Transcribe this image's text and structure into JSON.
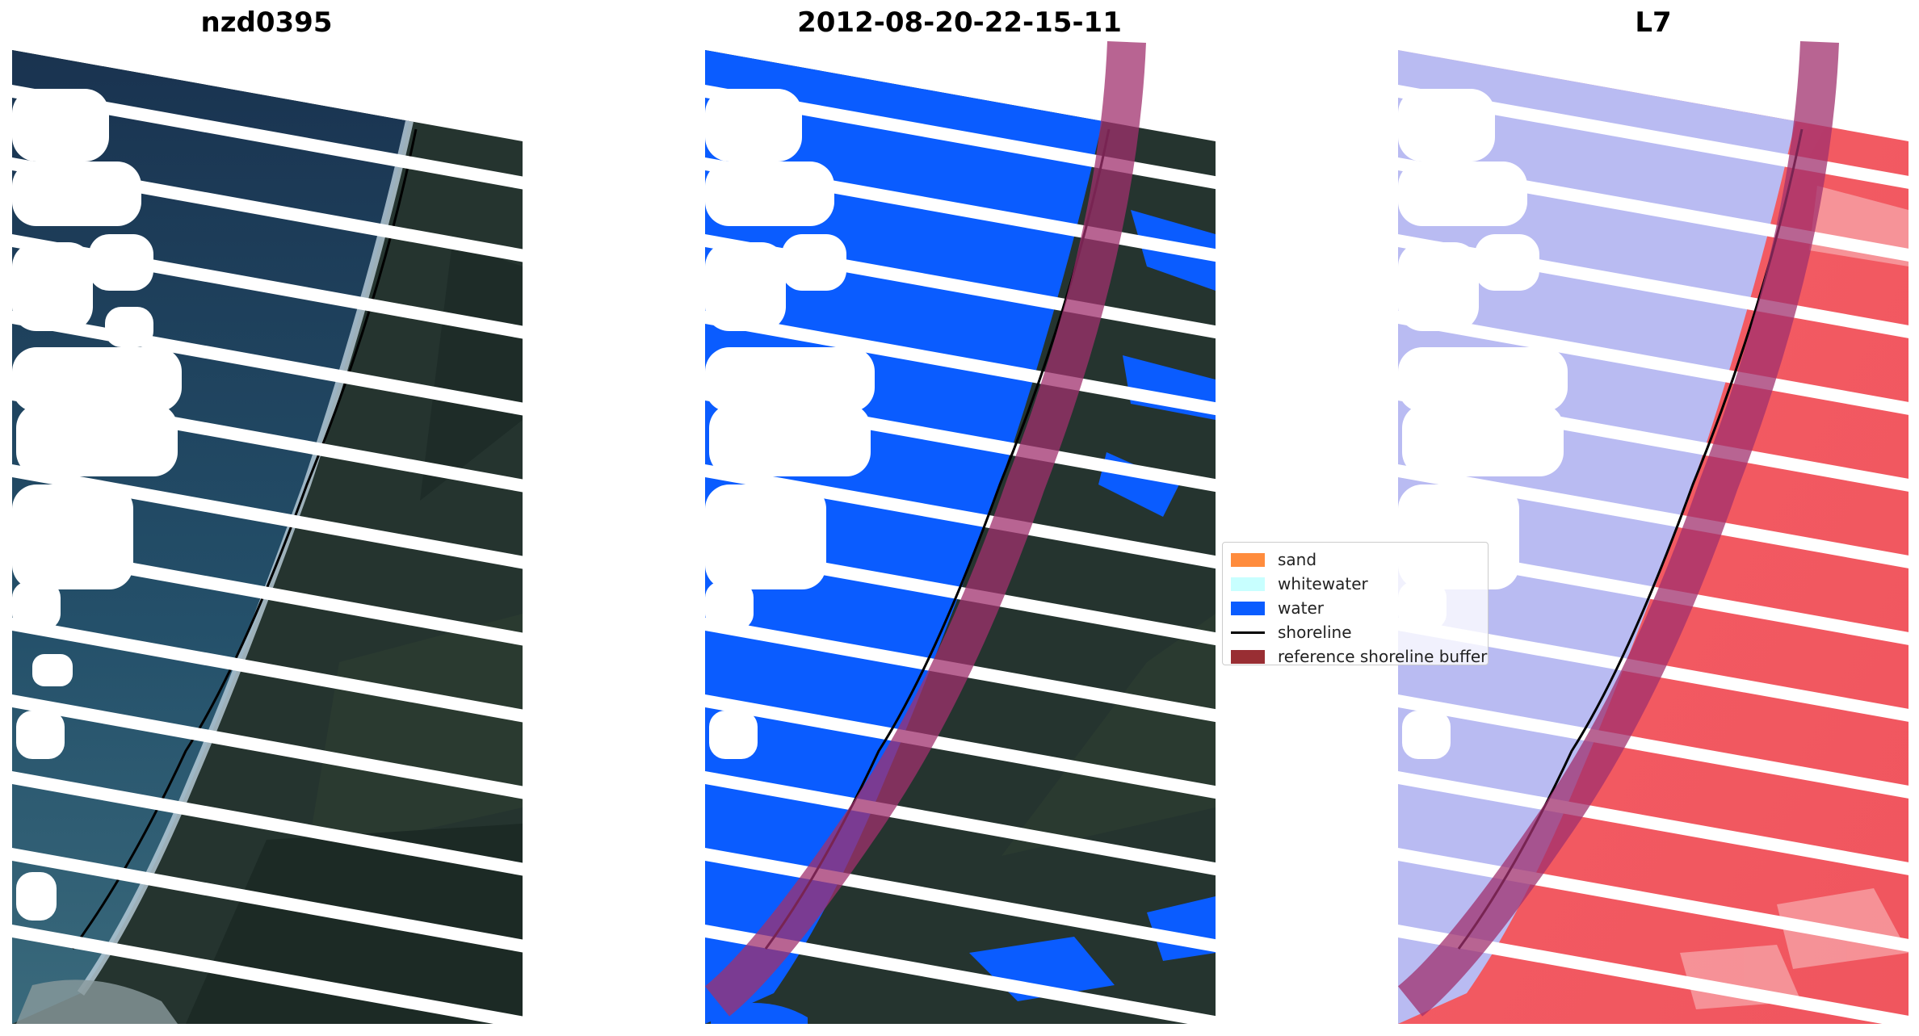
{
  "panels": [
    {
      "title": "nzd0395",
      "kind": "rgb"
    },
    {
      "title": "2012-08-20-22-15-11",
      "kind": "classified"
    },
    {
      "title": "L7",
      "kind": "mndwi"
    }
  ],
  "legend": {
    "items": [
      {
        "label": "sand",
        "color": "#ff8c3d",
        "type": "patch"
      },
      {
        "label": "whitewater",
        "color": "#c8ffff",
        "type": "patch"
      },
      {
        "label": "water",
        "color": "#0a5cff",
        "type": "patch"
      },
      {
        "label": "shoreline",
        "color": "#000000",
        "type": "line"
      },
      {
        "label": "reference shoreline buffer",
        "color": "#992e33",
        "type": "patch"
      }
    ]
  },
  "colors": {
    "ocean": "#1e3a5a",
    "land": "#24342f",
    "water_class": "#0a5cff",
    "buffer": "#a0306e",
    "mndwi_water": "#b8baf2",
    "mndwi_land": "#f0505a",
    "cloud": "#ffffff",
    "surf": "#c9dbe6"
  }
}
